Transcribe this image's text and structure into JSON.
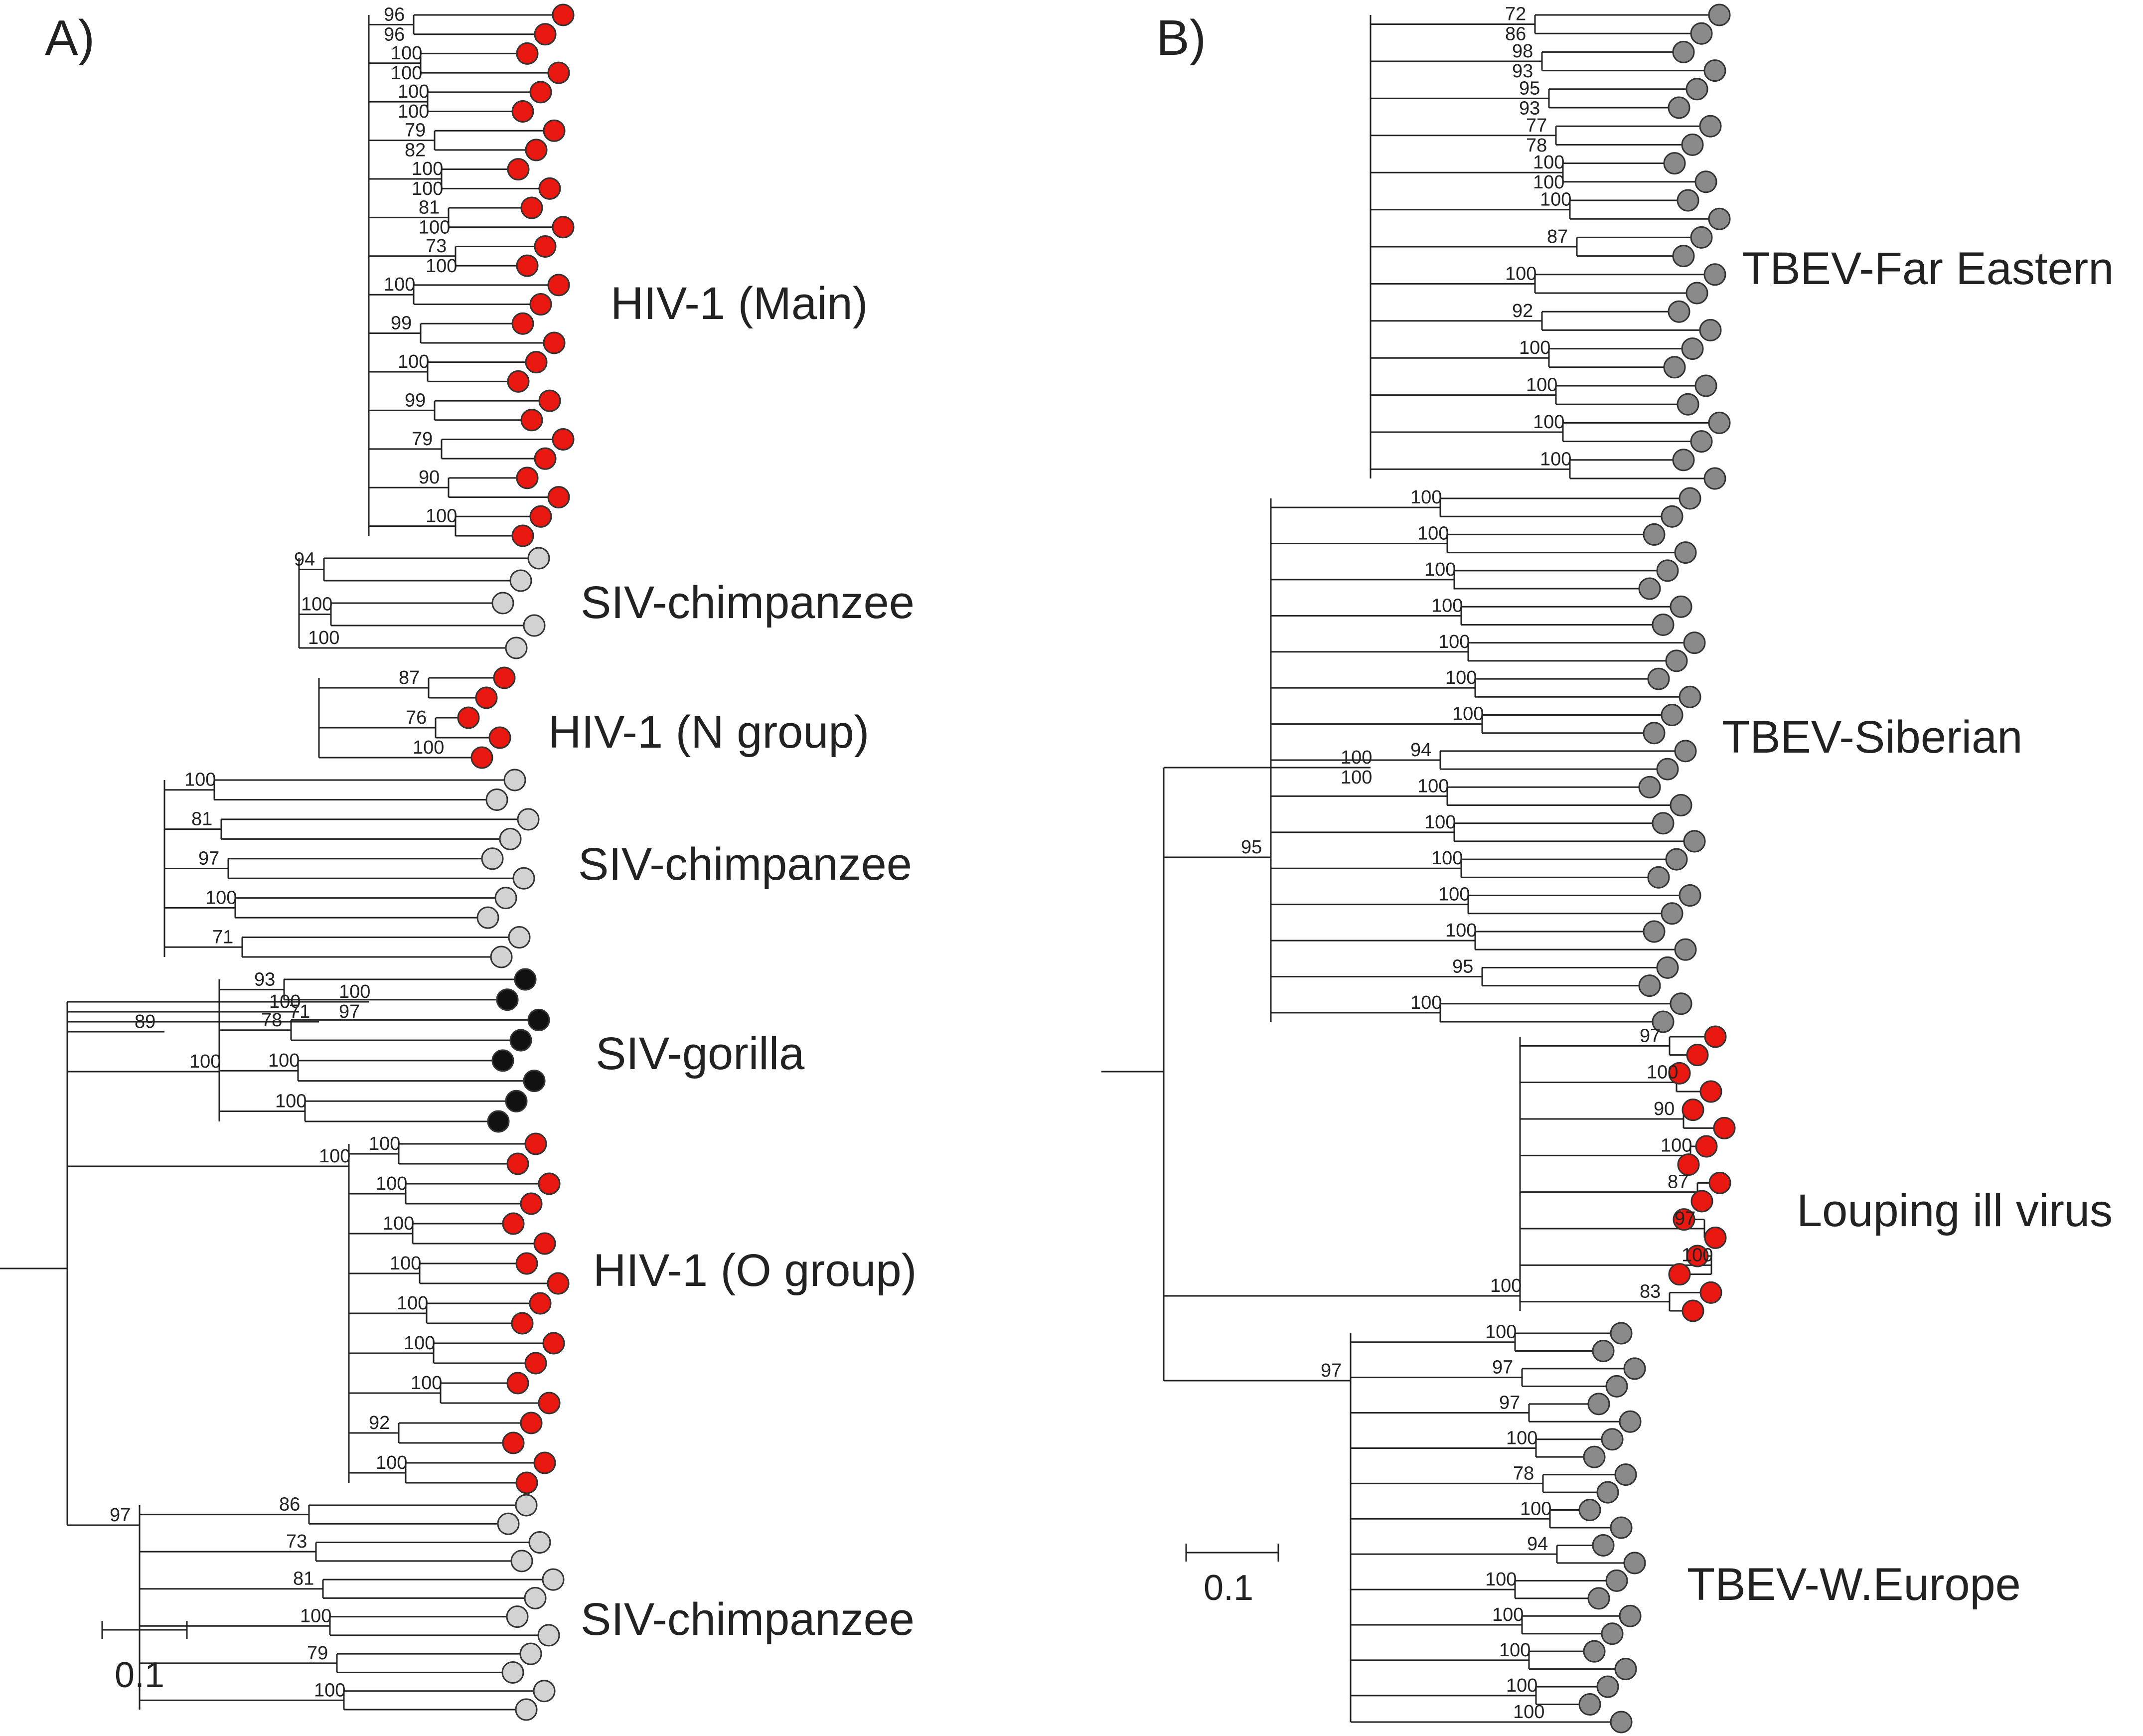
{
  "colors": {
    "hiv": "#e8170f",
    "siv_chimpanzee": "#d2d2d2",
    "siv_gorilla": "#111111",
    "tbev": "#8a8a8a",
    "louping_ill": "#e8170f",
    "branch": "#222222"
  },
  "panels": [
    {
      "id": "a",
      "letter": "A)",
      "clades": [
        {
          "label": "HIV-1 (Main)",
          "color": "hiv"
        },
        {
          "label": "SIV-chimpanzee",
          "color": "siv_chimpanzee"
        },
        {
          "label": "HIV-1 (N group)",
          "color": "hiv"
        },
        {
          "label": "SIV-chimpanzee",
          "color": "siv_chimpanzee"
        },
        {
          "label": "SIV-gorilla",
          "color": "siv_gorilla"
        },
        {
          "label": "HIV-1 (O group)",
          "color": "hiv"
        },
        {
          "label": "SIV-chimpanzee",
          "color": "siv_chimpanzee"
        }
      ],
      "scale_bar": "0.1",
      "support_values": [
        "100",
        "96",
        "100",
        "100",
        "79",
        "100",
        "81",
        "73",
        "100",
        "99",
        "100",
        "99",
        "79",
        "90",
        "100",
        "100",
        "94",
        "100",
        "100",
        "71",
        "87",
        "76",
        "100",
        "89",
        "100",
        "81",
        "97",
        "100",
        "71",
        "100",
        "93",
        "78",
        "100",
        "100",
        "100",
        "100",
        "100",
        "100",
        "100",
        "100",
        "100",
        "100",
        "92",
        "100",
        "97",
        "86",
        "73",
        "81",
        "100",
        "79",
        "100",
        "97",
        "96",
        "100",
        "100",
        "82",
        "100",
        "100",
        "100"
      ]
    },
    {
      "id": "b",
      "letter": "B)",
      "clades": [
        {
          "label": "TBEV-Far Eastern",
          "color": "tbev"
        },
        {
          "label": "TBEV-Siberian",
          "color": "tbev"
        },
        {
          "label": "Louping ill virus",
          "color": "louping_ill"
        },
        {
          "label": "TBEV-W.Europe",
          "color": "tbev"
        }
      ],
      "scale_bar": "0.1",
      "support_values": [
        "100",
        "72",
        "98",
        "95",
        "77",
        "100",
        "100",
        "87",
        "100",
        "92",
        "100",
        "100",
        "100",
        "100",
        "95",
        "100",
        "100",
        "100",
        "100",
        "100",
        "100",
        "100",
        "94",
        "100",
        "100",
        "100",
        "100",
        "100",
        "95",
        "100",
        "100",
        "97",
        "100",
        "90",
        "100",
        "87",
        "97",
        "100",
        "83",
        "97",
        "100",
        "97",
        "97",
        "100",
        "78",
        "100",
        "94",
        "100",
        "100",
        "100",
        "100",
        "100",
        "100",
        "86",
        "93",
        "93",
        "78",
        "100"
      ]
    }
  ]
}
